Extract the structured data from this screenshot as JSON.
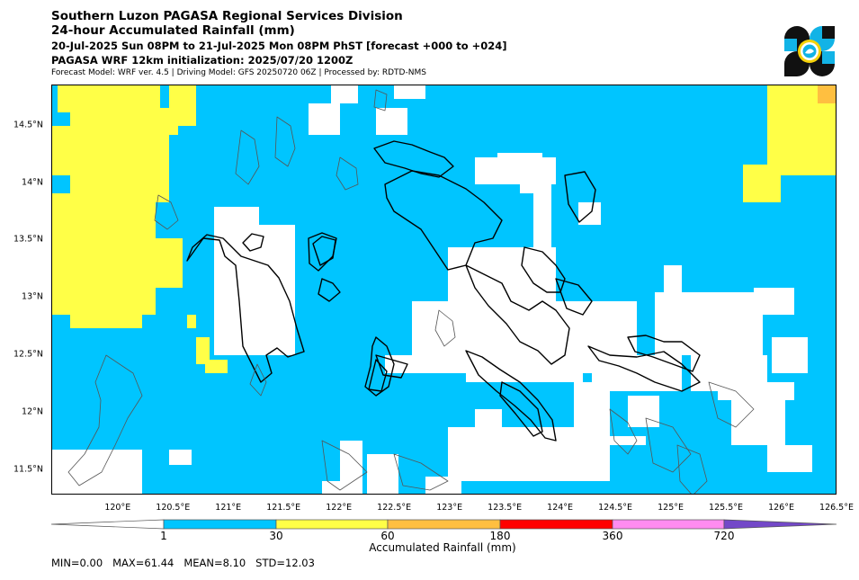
{
  "header": {
    "line1": "Southern Luzon PAGASA Regional Services Division",
    "line2": "24-hour Accumulated Rainfall (mm)",
    "line3": "20-Jul-2025 Sun 08PM to 21-Jul-2025 Mon 08PM PhST [forecast +000 to +024]",
    "line4": "PAGASA WRF 12km initialization: 2025/07/20 1200Z",
    "line5": "Forecast Model: WRF ver. 4.5 | Driving Model: GFS 20250720 06Z | Processed by: RDTD-NMS"
  },
  "logo": {
    "icon": "pagasa-logo-icon",
    "colors": [
      "#111111",
      "#12b3e6",
      "#f5d20a"
    ]
  },
  "map": {
    "lon_range": [
      119.4,
      126.5
    ],
    "lat_range": [
      11.28,
      14.85
    ],
    "x_ticks": [
      "120°E",
      "120.5°E",
      "121°E",
      "121.5°E",
      "122°E",
      "122.5°E",
      "123°E",
      "123.5°E",
      "124°E",
      "124.5°E",
      "125°E",
      "125.5°E",
      "126°E",
      "126.5°E"
    ],
    "y_ticks": [
      "14.5°N",
      "14°N",
      "13.5°N",
      "13°N",
      "12.5°N",
      "12°N",
      "11.5°N"
    ],
    "colors": {
      "cyan": "#00c5ff",
      "yellow": "#ffff47",
      "orange": "#ffbf40",
      "white": "#ffffff"
    }
  },
  "colorbar": {
    "title": "Accumulated Rainfall (mm)",
    "labels": [
      "1",
      "30",
      "60",
      "180",
      "360",
      "720"
    ],
    "segments": [
      "#ffffff",
      "#00c5ff",
      "#ffff47",
      "#ffbf40",
      "#ff0000",
      "#ff8cf0",
      "#7348c8"
    ]
  },
  "stats": {
    "text": "MIN=0.00   MAX=61.44   MEAN=8.10   STD=12.03"
  }
}
